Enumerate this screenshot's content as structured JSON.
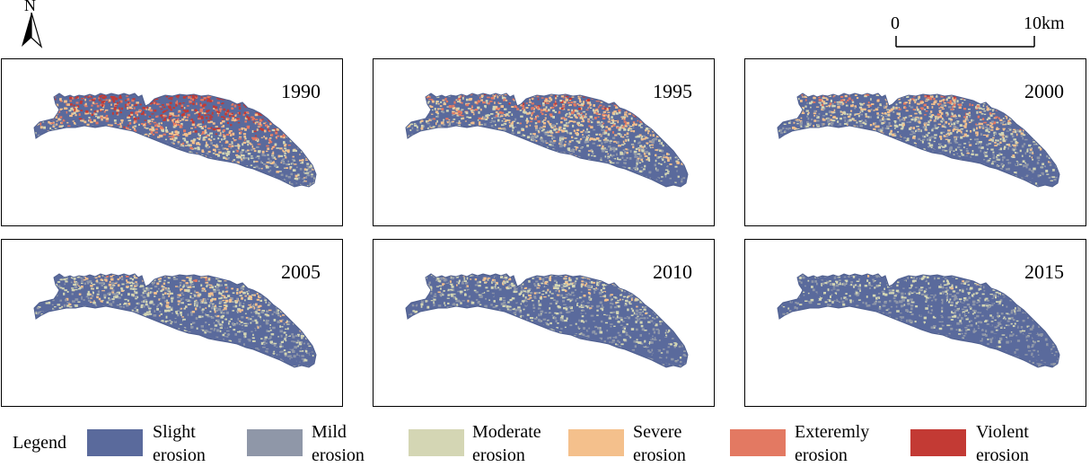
{
  "north_arrow": {
    "letter": "N"
  },
  "scale_bar": {
    "start_label": "0",
    "end_label": "10km"
  },
  "panels": [
    {
      "year": "1990",
      "intensity": 1.0
    },
    {
      "year": "1995",
      "intensity": 0.72
    },
    {
      "year": "2000",
      "intensity": 0.62
    },
    {
      "year": "2005",
      "intensity": 0.5
    },
    {
      "year": "2010",
      "intensity": 0.4
    },
    {
      "year": "2015",
      "intensity": 0.3
    }
  ],
  "legend": {
    "title": "Legend",
    "items": [
      {
        "line1": "Slight",
        "line2": "erosion",
        "color": "#5a6a9c"
      },
      {
        "line1": "Mild",
        "line2": "erosion",
        "color": "#8f97a8"
      },
      {
        "line1": "Moderate",
        "line2": "erosion",
        "color": "#d4d6b4"
      },
      {
        "line1": "Severe",
        "line2": "erosion",
        "color": "#f4c08c"
      },
      {
        "line1": "Exteremly",
        "line2": "erosion",
        "color": "#e37962"
      },
      {
        "line1": "Violent",
        "line2": "erosion",
        "color": "#c33a34"
      }
    ]
  }
}
